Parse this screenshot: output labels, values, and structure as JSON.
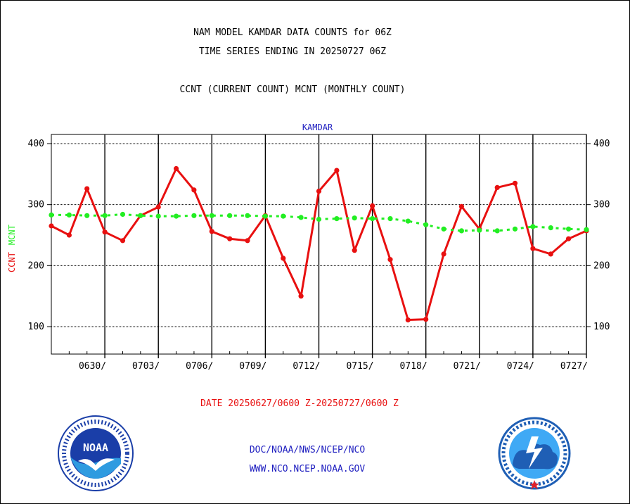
{
  "header": {
    "title_line1": "NAM MODEL KAMDAR DATA COUNTS for 06Z",
    "title_line2": "TIME SERIES ENDING IN 20250727 06Z",
    "legend_line": "CCNT (CURRENT COUNT) MCNT (MONTHLY COUNT)"
  },
  "footer": {
    "date_range": "DATE 20250627/0600 Z-20250727/0600 Z",
    "org_line": "DOC/NOAA/NWS/NCEP/NCO",
    "url_line": "WWW.NCO.NCEP.NOAA.GOV"
  },
  "logos": {
    "left": {
      "name": "noaa-logo",
      "center_text": "NOAA",
      "colors": {
        "blue": "#1a3ea8",
        "light": "#2f9be0"
      }
    },
    "right": {
      "name": "nws-logo",
      "colors": {
        "blue": "#1f5fb5",
        "light": "#3fa9f5",
        "red": "#e0202a"
      }
    }
  },
  "chart_data": {
    "type": "line",
    "panel_title": "KAMDAR",
    "ylabel_left": "CCNT",
    "ylabel_right": "MCNT",
    "ylim": [
      55,
      415
    ],
    "yticks": [
      100,
      200,
      300,
      400
    ],
    "grid": true,
    "xlim": [
      0,
      30
    ],
    "xtick_positions": [
      3,
      6,
      9,
      12,
      15,
      18,
      21,
      24,
      27,
      30
    ],
    "xtick_labels": [
      "0630/",
      "0703/",
      "0706/",
      "0709/",
      "0712/",
      "0715/",
      "0718/",
      "0721/",
      "0724/",
      "0727/"
    ],
    "colors": {
      "CCNT": "#e81010",
      "MCNT": "#22ee22",
      "grid": "#000000",
      "text_blue": "#2020c0"
    },
    "series": [
      {
        "name": "CCNT",
        "style": "solid",
        "x": [
          0,
          1,
          2,
          3,
          4,
          5,
          6,
          7,
          8,
          9,
          10,
          11,
          12,
          13,
          14,
          15,
          16,
          17,
          18,
          19,
          20,
          21,
          22,
          23,
          24,
          25,
          26,
          27,
          28,
          29,
          30
        ],
        "values": [
          265,
          250,
          326,
          255,
          241,
          282,
          296,
          359,
          324,
          256,
          244,
          241,
          282,
          212,
          150,
          322,
          356,
          225,
          298,
          210,
          111,
          112,
          219,
          297,
          260,
          328,
          335,
          228,
          219,
          244,
          257
        ]
      },
      {
        "name": "MCNT",
        "style": "dashed",
        "x": [
          0,
          1,
          2,
          3,
          4,
          5,
          6,
          7,
          8,
          9,
          10,
          11,
          12,
          13,
          14,
          15,
          16,
          17,
          18,
          19,
          20,
          21,
          22,
          23,
          24,
          25,
          26,
          27,
          28,
          29,
          30
        ],
        "values": [
          283,
          283,
          282,
          282,
          284,
          282,
          281,
          281,
          282,
          282,
          282,
          282,
          281,
          281,
          279,
          276,
          277,
          278,
          277,
          277,
          273,
          267,
          260,
          257,
          258,
          257,
          260,
          264,
          262,
          260,
          259
        ]
      }
    ]
  }
}
